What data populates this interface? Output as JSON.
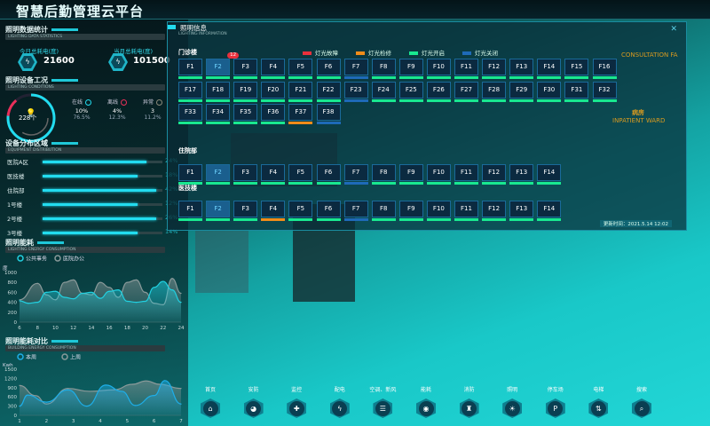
{
  "header": {
    "title": "智慧后勤管理云平台"
  },
  "scene_labels": {
    "consultation": "CONSULTATION FA",
    "ward_cn": "病房",
    "ward_en": "INPATIENT WARD"
  },
  "stats": {
    "title": "照明数据统计",
    "subtitle": "LIGHTING DATA STATISTICS",
    "today_label": "今日总耗电(度)",
    "today_value": "21600",
    "month_label": "当月总耗电(度)",
    "month_value": "101500"
  },
  "conditions": {
    "title": "照明设备工况",
    "subtitle": "LIGHTING CONDITIONS",
    "total": "228个",
    "items": [
      {
        "label": "在线",
        "count": "10%",
        "pct": "76.5%",
        "color": "#22dcef"
      },
      {
        "label": "离线",
        "count": "4%",
        "pct": "12.3%",
        "color": "#e8305a"
      },
      {
        "label": "异常",
        "count": "3",
        "pct": "11.2%",
        "color": "#8a8a7a"
      }
    ],
    "gauge": {
      "online": 76.5,
      "offline": 12.3,
      "abnormal": 11.2
    }
  },
  "distribution": {
    "title": "设备分布区域",
    "subtitle": "EQUIPMENT DISTRIBUTION",
    "items": [
      {
        "label": "医院A区",
        "pct": "24%",
        "value": 87
      },
      {
        "label": "医技楼",
        "pct": "18%",
        "value": 79
      },
      {
        "label": "住院部",
        "pct": "42%",
        "value": 95
      },
      {
        "label": "1号楼",
        "pct": "12%",
        "value": 79
      },
      {
        "label": "2号楼",
        "pct": "26%",
        "value": 95
      },
      {
        "label": "3号楼",
        "pct": "14%",
        "value": 79
      }
    ]
  },
  "chart_data": [
    {
      "type": "area",
      "title": "照明能耗",
      "subtitle": "LIGHTING ENERGY CONSUMPTION",
      "ylabel": "度",
      "ylim": [
        0,
        1000
      ],
      "yticks": [
        0,
        200,
        400,
        600,
        800,
        1000
      ],
      "xticks": [
        6,
        8,
        10,
        12,
        14,
        16,
        18,
        20,
        22,
        24
      ],
      "xlim": [
        6,
        24
      ],
      "legend_position": "top-left",
      "series": [
        {
          "name": "公共事务",
          "color": "#22d0e0",
          "x": [
            6,
            7,
            8,
            9,
            10,
            11,
            12,
            13,
            14,
            15,
            16,
            17,
            18,
            19,
            20,
            21,
            22,
            23,
            24
          ],
          "y": [
            430,
            380,
            400,
            600,
            620,
            500,
            470,
            580,
            600,
            480,
            620,
            650,
            420,
            400,
            420,
            700,
            820,
            650,
            400
          ]
        },
        {
          "name": "医院办公",
          "color": "#8a9a9a",
          "x": [
            6,
            8,
            9,
            10,
            11,
            12,
            13,
            14,
            15,
            16,
            17,
            18,
            19,
            20,
            21,
            22,
            23,
            24
          ],
          "y": [
            450,
            780,
            550,
            450,
            800,
            850,
            580,
            550,
            800,
            700,
            500,
            800,
            850,
            600,
            380,
            350,
            880,
            580
          ]
        }
      ]
    },
    {
      "type": "area",
      "title": "照明能耗对比",
      "subtitle": "BUILDING ENERGY CONSUMPTION",
      "ylabel": "Kwh",
      "ylim": [
        0,
        1500
      ],
      "yticks": [
        0,
        300,
        600,
        900,
        1200,
        1500
      ],
      "xticks": [
        1,
        2,
        3,
        4,
        5,
        6,
        7
      ],
      "xlim": [
        1,
        7
      ],
      "legend_position": "top-left",
      "series": [
        {
          "name": "本周",
          "color": "#1eaee8",
          "x": [
            1,
            1.3,
            2,
            2.8,
            3.5,
            4.2,
            4.8,
            5.3,
            6,
            6.4,
            7
          ],
          "y": [
            300,
            660,
            430,
            830,
            300,
            985,
            780,
            320,
            645,
            1130,
            370
          ]
        },
        {
          "name": "上周",
          "color": "#8a9a9a",
          "x": [
            1,
            1.6,
            2,
            2.8,
            3.6,
            4.5,
            5.2,
            5.7,
            6.2,
            7
          ],
          "y": [
            970,
            640,
            370,
            875,
            780,
            830,
            1010,
            1120,
            1010,
            875
          ]
        }
      ]
    }
  ],
  "panel": {
    "title": "照明信息",
    "subtitle": "LIGHTING INFORMATION",
    "close": "✕",
    "updated": "更新时间：2021.5.14 12:02",
    "legend": [
      {
        "label": "灯光故障",
        "color": "#e8303c"
      },
      {
        "label": "灯光检修",
        "color": "#f08c1a"
      },
      {
        "label": "灯光开启",
        "color": "#18e890"
      },
      {
        "label": "灯光关闭",
        "color": "#1e6ab8"
      }
    ],
    "buildings": [
      {
        "name": "门诊楼",
        "selected": "F2",
        "badge": "12",
        "floors": [
          "F1",
          "F2",
          "F3",
          "F4",
          "F5",
          "F6",
          "F7",
          "F8",
          "F9",
          "F10",
          "F11",
          "F12",
          "F13",
          "F14",
          "F15",
          "F16",
          "F17",
          "F18",
          "F19",
          "F20",
          "F21",
          "F22",
          "F23",
          "F24",
          "F25",
          "F26",
          "F27",
          "F28",
          "F29",
          "F30",
          "F31",
          "F32",
          "F33",
          "F34",
          "F35",
          "F36",
          "F37",
          "F38"
        ],
        "status": [
          "on",
          "on",
          "on",
          "on",
          "on",
          "on",
          "off",
          "on",
          "on",
          "on",
          "on",
          "on",
          "on",
          "on",
          "on",
          "on",
          "on",
          "on",
          "on",
          "on",
          "on",
          "on",
          "off",
          "on",
          "on",
          "on",
          "on",
          "on",
          "on",
          "on",
          "on",
          "on",
          "on",
          "on",
          "on",
          "on",
          "repair",
          "off"
        ]
      },
      {
        "name": "住院部",
        "selected": "F2",
        "floors": [
          "F1",
          "F2",
          "F3",
          "F4",
          "F5",
          "F6",
          "F7",
          "F8",
          "F9",
          "F10",
          "F11",
          "F12",
          "F13",
          "F14"
        ],
        "status": [
          "on",
          "on",
          "on",
          "on",
          "on",
          "on",
          "off",
          "on",
          "on",
          "on",
          "on",
          "on",
          "on",
          "on"
        ]
      },
      {
        "name": "医技楼",
        "selected": "F2",
        "floors": [
          "F1",
          "F2",
          "F3",
          "F4",
          "F5",
          "F6",
          "F7",
          "F8",
          "F9",
          "F10",
          "F11",
          "F12",
          "F13",
          "F14"
        ],
        "status": [
          "on",
          "on",
          "on",
          "repair",
          "on",
          "on",
          "off",
          "on",
          "on",
          "on",
          "on",
          "on",
          "on",
          "on"
        ]
      }
    ]
  },
  "nav": [
    {
      "label": "首页",
      "icon": "home-icon",
      "g": "⌂"
    },
    {
      "label": "安防",
      "icon": "camera-icon",
      "g": "◕"
    },
    {
      "label": "监控",
      "icon": "shield-icon",
      "g": "✚"
    },
    {
      "label": "配电",
      "icon": "lightning-icon",
      "g": "ϟ"
    },
    {
      "label": "空调、新风",
      "icon": "air-conditioner-icon",
      "g": "☰"
    },
    {
      "label": "能耗",
      "icon": "energy-icon",
      "g": "◉"
    },
    {
      "label": "消防",
      "icon": "fire-hydrant-icon",
      "g": "♜"
    },
    {
      "label": "照明",
      "icon": "lightbulb-icon",
      "g": "☀"
    },
    {
      "label": "停车场",
      "icon": "parking-icon",
      "g": "P"
    },
    {
      "label": "电梯",
      "icon": "elevator-icon",
      "g": "⇅"
    },
    {
      "label": "搜索",
      "icon": "search-icon",
      "g": "⌕"
    }
  ]
}
